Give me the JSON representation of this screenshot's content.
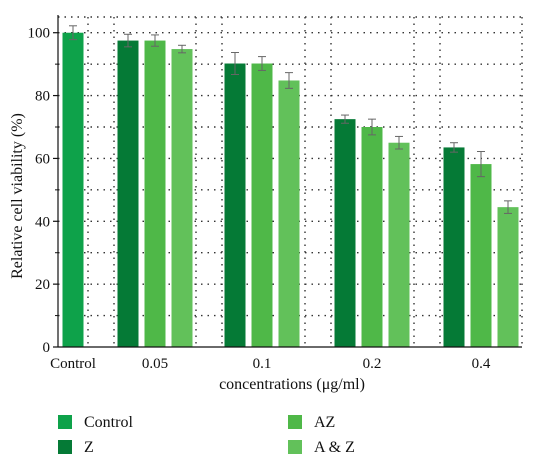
{
  "chart_data": {
    "type": "bar",
    "xlabel": "concentrations (μg/ml)",
    "ylabel": "Relative cell viability (%)",
    "ylim": [
      0,
      105
    ],
    "yticks": [
      0,
      20,
      40,
      60,
      80,
      100
    ],
    "grid": true,
    "legend_position": "bottom",
    "groups": [
      {
        "label": "Control",
        "bars": [
          {
            "series": "Control",
            "value": 100,
            "error": 2.2
          }
        ]
      },
      {
        "label": "0.05",
        "bars": [
          {
            "series": "Z",
            "value": 97.5,
            "error": 2.0
          },
          {
            "series": "AZ",
            "value": 97.5,
            "error": 1.8
          },
          {
            "series": "A & Z",
            "value": 94.8,
            "error": 1.2
          }
        ]
      },
      {
        "label": "0.1",
        "bars": [
          {
            "series": "Z",
            "value": 90.2,
            "error": 3.5
          },
          {
            "series": "AZ",
            "value": 90.2,
            "error": 2.2
          },
          {
            "series": "A & Z",
            "value": 84.8,
            "error": 2.5
          }
        ]
      },
      {
        "label": "0.2",
        "bars": [
          {
            "series": "Z",
            "value": 72.5,
            "error": 1.3
          },
          {
            "series": "AZ",
            "value": 70.0,
            "error": 2.5
          },
          {
            "series": "A & Z",
            "value": 65.0,
            "error": 2.0
          }
        ]
      },
      {
        "label": "0.4",
        "bars": [
          {
            "series": "Z",
            "value": 63.5,
            "error": 1.5
          },
          {
            "series": "AZ",
            "value": 58.2,
            "error": 4.0
          },
          {
            "series": "A & Z",
            "value": 44.5,
            "error": 2.0
          }
        ]
      }
    ],
    "legend": [
      {
        "name": "Control",
        "color": "#0ea24a"
      },
      {
        "name": "Z",
        "color": "#057a36"
      },
      {
        "name": "AZ",
        "color": "#4fb848"
      },
      {
        "name": "A & Z",
        "color": "#62c15a"
      }
    ]
  }
}
